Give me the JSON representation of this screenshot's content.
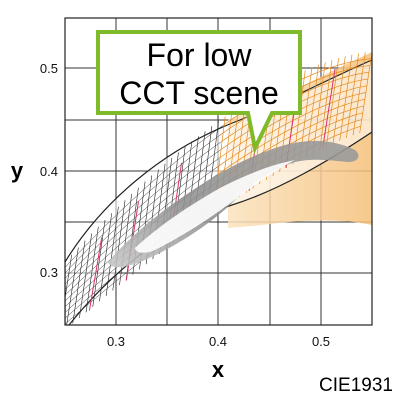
{
  "axes": {
    "x_label": "x",
    "y_label": "y",
    "x_ticks": [
      "0.3",
      "0.4",
      "0.5"
    ],
    "y_ticks": [
      "0.3",
      "0.4",
      "0.5"
    ],
    "x_range": [
      0.25,
      0.55
    ],
    "y_range": [
      0.25,
      0.55
    ]
  },
  "callout": {
    "line1": "For low",
    "line2": "CCT scene",
    "border_color": "#7fba2a"
  },
  "footer": {
    "label": "CIE1931"
  },
  "colors": {
    "mesh": "#222222",
    "highlight_fill": "#f8c98a",
    "highlight_line": "#e58a1f",
    "accent_line": "#d6336c",
    "region": "#a8a8a8"
  }
}
